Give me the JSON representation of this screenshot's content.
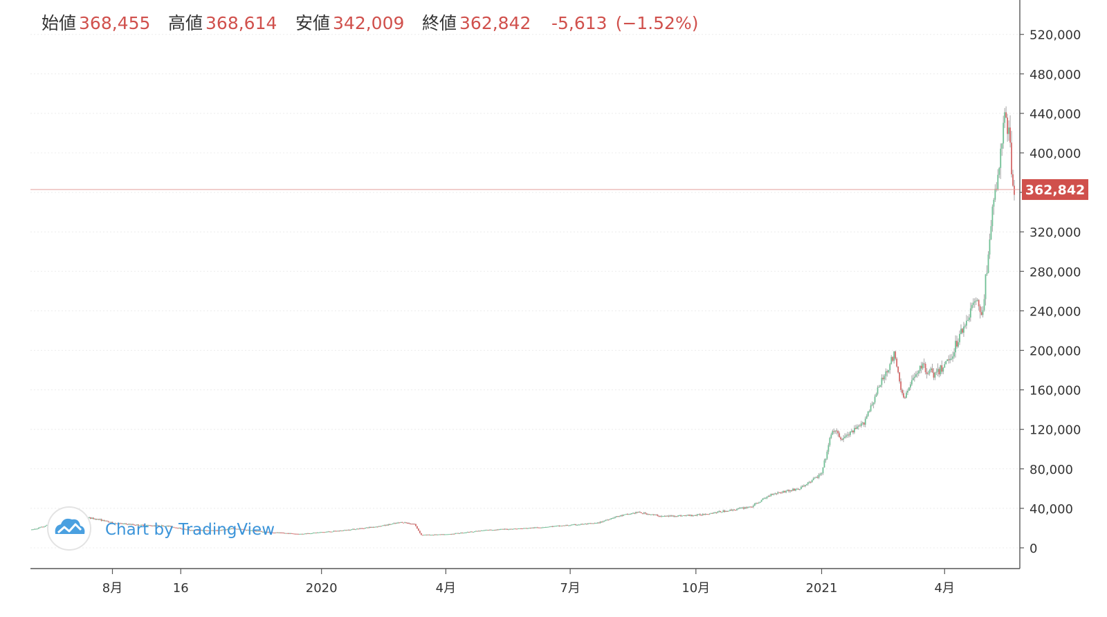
{
  "ohlc": {
    "open_label": "始値",
    "open": "368,455",
    "high_label": "高値",
    "high": "368,614",
    "low_label": "安値",
    "low": "342,009",
    "close_label": "終値",
    "close": "362,842",
    "change": "-5,613",
    "change_pct": "(−1.52%)"
  },
  "watermark": "Chart by TradingView",
  "last_price_label": "362,842",
  "colors": {
    "up": "#6fbf94",
    "down": "#d46a6a",
    "wick": "#a6a6a6",
    "last": "#d0504c",
    "brand": "#3b94d9"
  },
  "chart_data": {
    "type": "candlestick",
    "title": "",
    "xlabel": "",
    "ylabel": "",
    "ylim": [
      -20000,
      540000
    ],
    "y_ticks": [
      0,
      40000,
      80000,
      120000,
      160000,
      200000,
      240000,
      280000,
      320000,
      360000,
      400000,
      440000,
      480000,
      520000
    ],
    "y_tick_labels": [
      "0",
      "40,000",
      "80,000",
      "120,000",
      "160,000",
      "200,000",
      "240,000",
      "280,000",
      "320,000",
      "",
      "400,000",
      "440,000",
      "480,000",
      "520,000"
    ],
    "x_range": [
      "2019-06-01",
      "2021-05-21"
    ],
    "x_ticks": [
      {
        "date": "2019-07-31",
        "label": "8月"
      },
      {
        "date": "2019-09-19",
        "label": "16"
      },
      {
        "date": "2019-12-31",
        "label": "2020"
      },
      {
        "date": "2020-03-31",
        "label": "4月"
      },
      {
        "date": "2020-06-30",
        "label": "7月"
      },
      {
        "date": "2020-09-30",
        "label": "10月"
      },
      {
        "date": "2020-12-31",
        "label": "2021"
      },
      {
        "date": "2021-03-31",
        "label": "4月"
      }
    ],
    "last_price": 362842,
    "price_path": [
      [
        "2019-06-01",
        18000
      ],
      [
        "2019-06-12",
        22000
      ],
      [
        "2019-06-22",
        33000
      ],
      [
        "2019-07-01",
        27000
      ],
      [
        "2019-07-10",
        31000
      ],
      [
        "2019-07-20",
        29000
      ],
      [
        "2019-08-01",
        25000
      ],
      [
        "2019-08-20",
        23000
      ],
      [
        "2019-09-10",
        22000
      ],
      [
        "2019-09-25",
        18000
      ],
      [
        "2019-10-15",
        17500
      ],
      [
        "2019-10-28",
        19500
      ],
      [
        "2019-11-20",
        16000
      ],
      [
        "2019-12-15",
        14000
      ],
      [
        "2020-01-15",
        17500
      ],
      [
        "2020-02-12",
        22000
      ],
      [
        "2020-02-28",
        26000
      ],
      [
        "2020-03-08",
        24000
      ],
      [
        "2020-03-13",
        13000
      ],
      [
        "2020-03-31",
        13500
      ],
      [
        "2020-04-30",
        18000
      ],
      [
        "2020-05-31",
        20000
      ],
      [
        "2020-06-30",
        23000
      ],
      [
        "2020-07-20",
        25000
      ],
      [
        "2020-08-01",
        31000
      ],
      [
        "2020-08-18",
        36000
      ],
      [
        "2020-09-05",
        32000
      ],
      [
        "2020-09-30",
        33000
      ],
      [
        "2020-10-25",
        38000
      ],
      [
        "2020-11-10",
        42000
      ],
      [
        "2020-11-25",
        55000
      ],
      [
        "2020-12-15",
        60000
      ],
      [
        "2020-12-31",
        75000
      ],
      [
        "2021-01-08",
        120000
      ],
      [
        "2021-01-15",
        110000
      ],
      [
        "2021-01-30",
        125000
      ],
      [
        "2021-02-15",
        175000
      ],
      [
        "2021-02-22",
        195000
      ],
      [
        "2021-03-01",
        150000
      ],
      [
        "2021-03-13",
        185000
      ],
      [
        "2021-03-25",
        175000
      ],
      [
        "2021-04-05",
        195000
      ],
      [
        "2021-04-14",
        225000
      ],
      [
        "2021-04-22",
        250000
      ],
      [
        "2021-04-28",
        240000
      ],
      [
        "2021-05-04",
        330000
      ],
      [
        "2021-05-10",
        385000
      ],
      [
        "2021-05-14",
        440000
      ],
      [
        "2021-05-17",
        420000
      ],
      [
        "2021-05-20",
        362842
      ]
    ]
  }
}
